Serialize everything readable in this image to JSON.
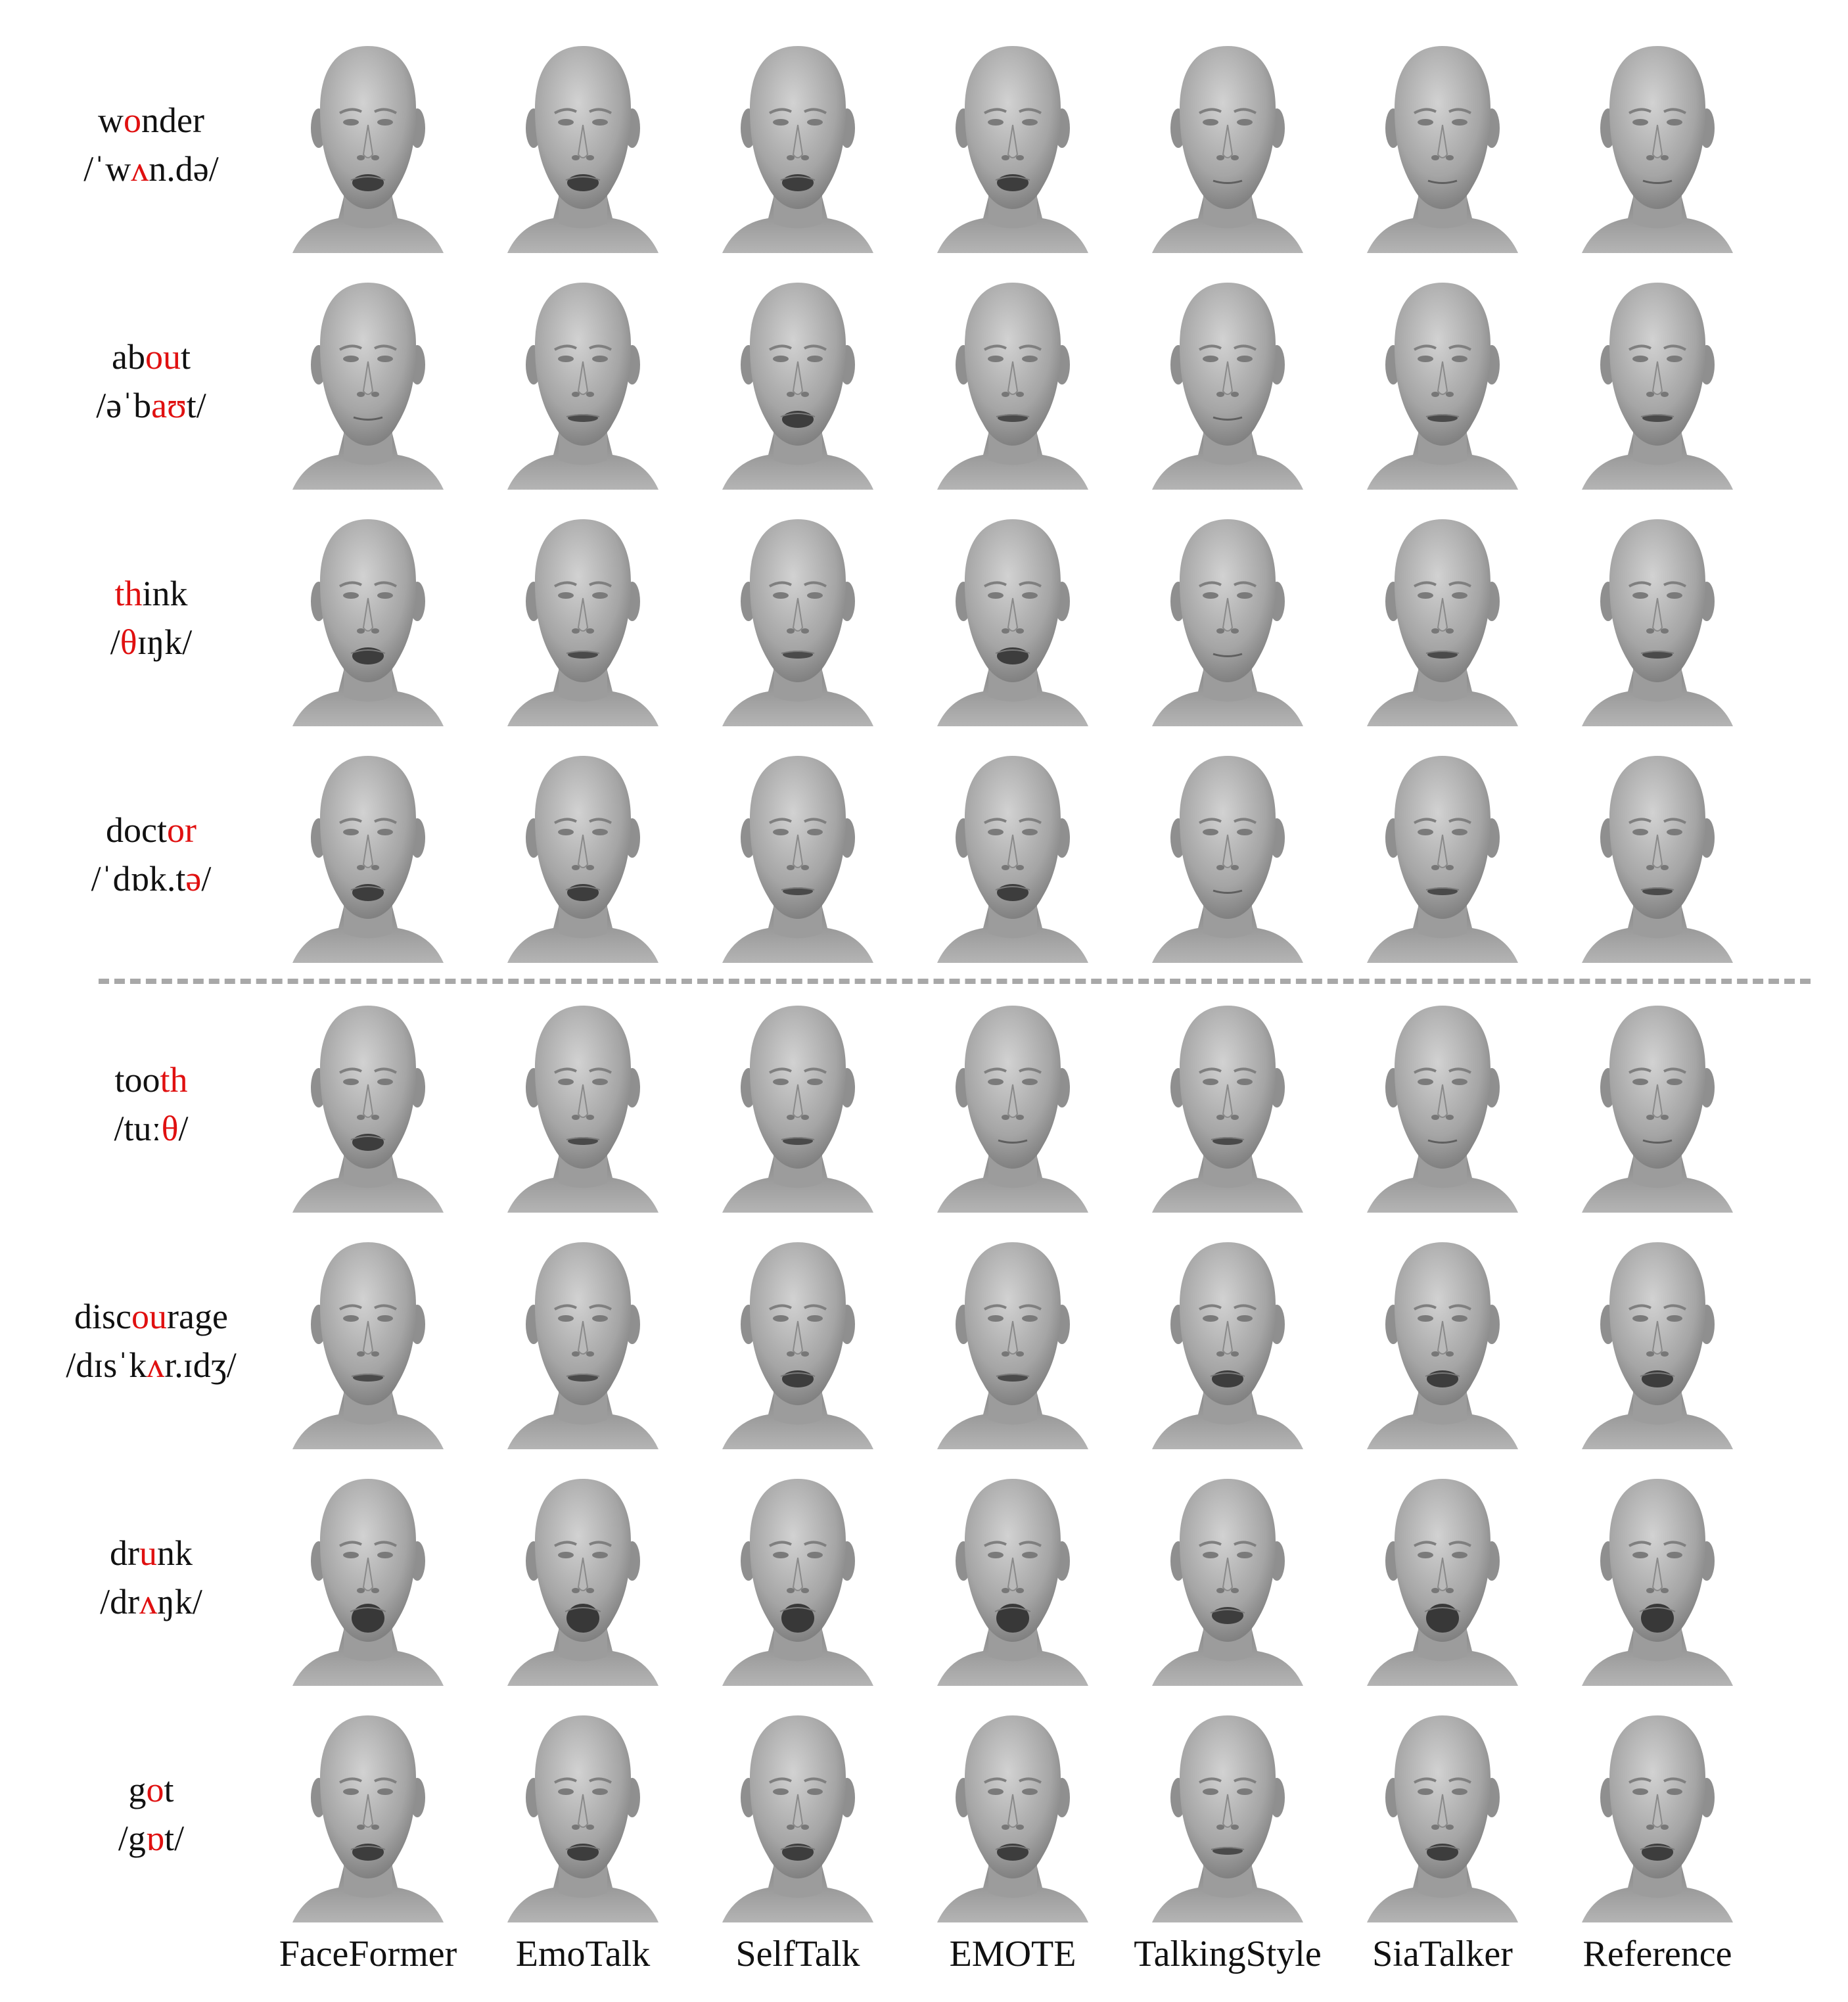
{
  "columns": [
    "FaceFormer",
    "EmoTalk",
    "SelfTalk",
    "EMOTE",
    "TalkingStyle",
    "SiaTalker",
    "Reference"
  ],
  "rows": [
    {
      "word": [
        {
          "t": "w",
          "hl": false
        },
        {
          "t": "o",
          "hl": true
        },
        {
          "t": "nder",
          "hl": false
        }
      ],
      "ipa": [
        {
          "t": "/ˈw",
          "hl": false
        },
        {
          "t": "ʌ",
          "hl": true
        },
        {
          "t": "n.də/",
          "hl": false
        }
      ],
      "mouth": [
        "open",
        "open",
        "open",
        "open",
        "closed",
        "closed",
        "closed"
      ]
    },
    {
      "word": [
        {
          "t": "ab",
          "hl": false
        },
        {
          "t": "ou",
          "hl": true
        },
        {
          "t": "t",
          "hl": false
        }
      ],
      "ipa": [
        {
          "t": "/əˈb",
          "hl": false
        },
        {
          "t": "aʊ",
          "hl": true
        },
        {
          "t": "t/",
          "hl": false
        }
      ],
      "mouth": [
        "closed",
        "slight",
        "open",
        "slight",
        "closed",
        "slight",
        "slight"
      ]
    },
    {
      "word": [
        {
          "t": "th",
          "hl": true
        },
        {
          "t": "ink",
          "hl": false
        }
      ],
      "ipa": [
        {
          "t": "/",
          "hl": false
        },
        {
          "t": "θ",
          "hl": true
        },
        {
          "t": "ɪŋk/",
          "hl": false
        }
      ],
      "mouth": [
        "open",
        "slight",
        "slight",
        "open",
        "closed",
        "slight",
        "slight"
      ]
    },
    {
      "word": [
        {
          "t": "doct",
          "hl": false
        },
        {
          "t": "or",
          "hl": true
        }
      ],
      "ipa": [
        {
          "t": "/ˈdɒk.t",
          "hl": false
        },
        {
          "t": "ə",
          "hl": true
        },
        {
          "t": "/",
          "hl": false
        }
      ],
      "mouth": [
        "open",
        "open",
        "slight",
        "open",
        "closed",
        "slight",
        "slight"
      ]
    },
    {
      "word": [
        {
          "t": "too",
          "hl": false
        },
        {
          "t": "th",
          "hl": true
        }
      ],
      "ipa": [
        {
          "t": "/tuː",
          "hl": false
        },
        {
          "t": "θ",
          "hl": true
        },
        {
          "t": "/",
          "hl": false
        }
      ],
      "mouth": [
        "open",
        "slight",
        "slight",
        "closed",
        "slight",
        "closed",
        "closed"
      ]
    },
    {
      "word": [
        {
          "t": "disc",
          "hl": false
        },
        {
          "t": "ou",
          "hl": true
        },
        {
          "t": "rage",
          "hl": false
        }
      ],
      "ipa": [
        {
          "t": "/dɪsˈk",
          "hl": false
        },
        {
          "t": "ʌ",
          "hl": true
        },
        {
          "t": "r.ɪdʒ/",
          "hl": false
        }
      ],
      "mouth": [
        "slight",
        "slight",
        "open",
        "slight",
        "open",
        "open",
        "open"
      ]
    },
    {
      "word": [
        {
          "t": "dr",
          "hl": false
        },
        {
          "t": "u",
          "hl": true
        },
        {
          "t": "nk",
          "hl": false
        }
      ],
      "ipa": [
        {
          "t": "/dr",
          "hl": false
        },
        {
          "t": "ʌ",
          "hl": true
        },
        {
          "t": "ŋk/",
          "hl": false
        }
      ],
      "mouth": [
        "wide",
        "wide",
        "wide",
        "wide",
        "open",
        "wide",
        "wide"
      ]
    },
    {
      "word": [
        {
          "t": "g",
          "hl": false
        },
        {
          "t": "o",
          "hl": true
        },
        {
          "t": "t",
          "hl": false
        }
      ],
      "ipa": [
        {
          "t": "/g",
          "hl": false
        },
        {
          "t": "ɒ",
          "hl": true
        },
        {
          "t": "t/",
          "hl": false
        }
      ],
      "mouth": [
        "open",
        "open",
        "open",
        "open",
        "slight",
        "open",
        "open"
      ]
    }
  ],
  "colors": {
    "highlight": "#e01010",
    "divider": "#a8a8a8",
    "head_light": "#c9c9c9",
    "head_mid": "#9a9a9a",
    "head_dark": "#6c6c6c"
  }
}
